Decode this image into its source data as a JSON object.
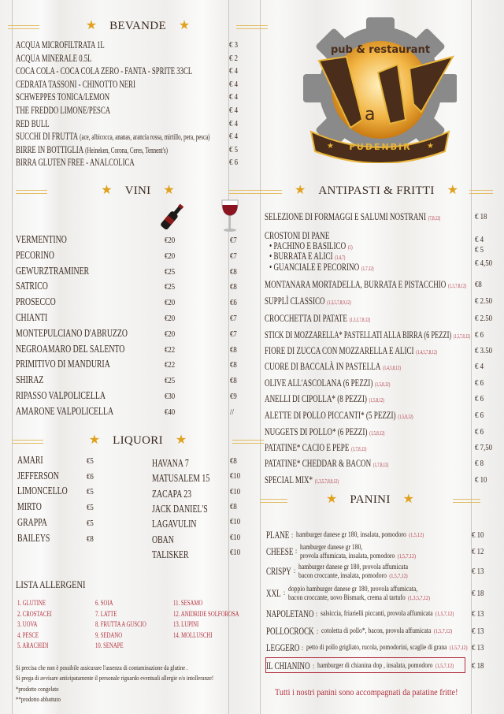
{
  "colors": {
    "text": "#3b2a20",
    "accent_red": "#b2323f",
    "star_gold": "#e0a21e"
  },
  "logo": {
    "tagline": "pub & restaurant",
    "name": "MaWi",
    "ribbon": "FUDENBIR"
  },
  "bevande": {
    "title": "BEVANDE",
    "items": [
      {
        "name": "ACQUA MICROFILTRATA 1L",
        "price": "€ 3"
      },
      {
        "name": "ACQUA MINERALE 0.5L",
        "price": "€ 2"
      },
      {
        "name": "COCA COLA - COCA COLA ZERO - FANTA - SPRITE 33CL",
        "price": "€ 4"
      },
      {
        "name": "CEDRATA TASSONI - CHINOTTO NERI",
        "price": "€ 4"
      },
      {
        "name": "SCHWEPPES TONICA/LEMON",
        "price": "€ 4"
      },
      {
        "name": "THE FREDDO LIMONE/PESCA",
        "price": "€ 4"
      },
      {
        "name": "RED BULL",
        "price": "€ 4"
      },
      {
        "name": "SUCCHI DI FRUTTA",
        "note": "(ace, albicocca, ananas, arancia rossa, mirtillo, pera, pesca)",
        "price": "€ 4"
      },
      {
        "name": "BIRRE IN BOTTIGLIA",
        "note": "(Heineken, Corona, Ceres, Tennent's)",
        "price": "€ 5"
      },
      {
        "name": "BIRRA GLUTEN FREE - ANALCOLICA",
        "price": "€ 6"
      }
    ]
  },
  "vini": {
    "title": "VINI",
    "icons": [
      "wine-bottle",
      "wine-glass"
    ],
    "items": [
      {
        "name": "VERMENTINO",
        "bottle": "€20",
        "glass": "€7"
      },
      {
        "name": "PECORINO",
        "bottle": "€20",
        "glass": "€7"
      },
      {
        "name": "GEWURZTRAMINER",
        "bottle": "€25",
        "glass": "€8"
      },
      {
        "name": "SATRICO",
        "bottle": "€25",
        "glass": "€8"
      },
      {
        "name": "PROSECCO",
        "bottle": "€20",
        "glass": "€6"
      },
      {
        "name": "CHIANTI",
        "bottle": "€20",
        "glass": "€7"
      },
      {
        "name": "MONTEPULCIANO D'ABRUZZO",
        "bottle": "€20",
        "glass": "€7"
      },
      {
        "name": "NEGROAMARO DEL SALENTO",
        "bottle": "€22",
        "glass": "€8"
      },
      {
        "name": "PRIMITIVO DI MANDURIA",
        "bottle": "€22",
        "glass": "€8"
      },
      {
        "name": "SHIRAZ",
        "bottle": "€25",
        "glass": "€8"
      },
      {
        "name": "RIPASSO VALPOLICELLA",
        "bottle": "€30",
        "glass": "€9"
      },
      {
        "name": "AMARONE VALPOLICELLA",
        "bottle": "€40",
        "glass": "//"
      }
    ]
  },
  "liquori": {
    "title": "LIQUORI",
    "left": [
      {
        "name": "AMARI",
        "price": "€5"
      },
      {
        "name": "JEFFERSON",
        "price": "€6"
      },
      {
        "name": "LIMONCELLO",
        "price": "€5"
      },
      {
        "name": "MIRTO",
        "price": "€5"
      },
      {
        "name": "GRAPPA",
        "price": "€5"
      },
      {
        "name": "BAILEYS",
        "price": "€8"
      }
    ],
    "right": [
      {
        "name": "HAVANA 7",
        "price": "€8"
      },
      {
        "name": "MATUSALEM 15",
        "price": "€10"
      },
      {
        "name": "ZACAPA 23",
        "price": "€10"
      },
      {
        "name": "JACK DANIEL'S",
        "price": "€8"
      },
      {
        "name": "LAGAVULIN",
        "price": "€10"
      },
      {
        "name": "OBAN",
        "price": "€10"
      },
      {
        "name": "TALISKER",
        "price": "€10"
      }
    ]
  },
  "allergeni": {
    "title": "LISTA ALLERGENI",
    "items": [
      "1. GLUTINE",
      "2. CROSTACEI",
      "3. UOVA",
      "4. PESCE",
      "5. ARACHIDI",
      "6. SOIA",
      "7. LATTE",
      "8. FRUTTA A GUSCIO",
      "9. SEDANO",
      "10. SENAPE",
      "11. SESAMO",
      "12. ANIDRIDE SOLFOROSA",
      "13. LUPINI",
      "14. MOLLUSCHI"
    ],
    "notes": [
      "Si precisa che non è possibile assicurare l'assenza di contaminazione da glutine .",
      "Si prega di avvisare anticipatamente il personale riguardo eventuali allergie e/o intolleranze!",
      "*prodotto congelato",
      "**prodotto abbattuto"
    ]
  },
  "antipasti": {
    "title": "ANTIPASTI & FRITTI",
    "items": [
      {
        "name": "SELEZIONE DI FORMAGGI E SALUMI NOSTRANI",
        "allergens": "(7,8,12)",
        "price": "€ 18"
      },
      {
        "name": "CROSTONI DI PANE",
        "allergens": "",
        "price": ""
      },
      {
        "name": "• PACHINO E BASILICO",
        "allergens": "(1)",
        "price": "€ 4"
      },
      {
        "name": "• BURRATA E ALICI",
        "allergens": "(1,4,7)",
        "price": "€ 5"
      },
      {
        "name": "• GUANCIALE E PECORINO",
        "allergens": "(1,7,12)",
        "price": "€ 4,50"
      },
      {
        "name": "MONTANARA MORTADELLA, BURRATA E PISTACCHIO",
        "allergens": "(1,5,7,8,12)",
        "price": "€8"
      },
      {
        "name": "SUPPLÌ CLASSICO",
        "allergens": "(1,3,5,7,8,9,12)",
        "price": "€ 2.50"
      },
      {
        "name": "CROCCHETTA DI PATATE",
        "allergens": "(1,3,5,7,8,12)",
        "price": "€ 2.50"
      },
      {
        "name": "STICK DI MOZZARELLA* PASTELLATI ALLA BIRRA (6 PEZZI)",
        "allergens": "(1,5,7,8,12)",
        "price": "€ 6"
      },
      {
        "name": "FIORE DI ZUCCA CON MOZZARELLA E ALICI",
        "allergens": "(1,4,5,7,8,12)",
        "price": "€ 3.50"
      },
      {
        "name": "CUORE DI BACCALÀ IN PASTELLA",
        "allergens": "(1,4,5,8,12)",
        "price": "€ 4"
      },
      {
        "name": "OLIVE ALL'ASCOLANA (6 PEZZI)",
        "allergens": "(1,5,8,12)",
        "price": "€ 6"
      },
      {
        "name": "ANELLI DI CIPOLLA* (8 PEZZI)",
        "allergens": "(1,5,8,12)",
        "price": "€ 6"
      },
      {
        "name": "ALETTE DI POLLO PICCANTI* (5 PEZZI)",
        "allergens": "(1,5,8,12)",
        "price": "€ 6"
      },
      {
        "name": "NUGGETS DI POLLO* (6 PEZZI)",
        "allergens": "(1,5,8,12)",
        "price": "€ 6"
      },
      {
        "name": "PATATINE* CACIO E PEPE",
        "allergens": "(1,7,8,12)",
        "price": "€ 7,50"
      },
      {
        "name": "PATATINE* CHEDDAR & BACON",
        "allergens": "(1,7,8,12)",
        "price": "€ 8"
      },
      {
        "name": "SPECIAL MIX*",
        "allergens": "(1,3,5,7,8,9,12)",
        "price": "€ 10"
      }
    ]
  },
  "panini": {
    "title": "PANINI",
    "items": [
      {
        "name": "PLANE",
        "desc": [
          "hamburger danese gr 180, insalata, pomodoro"
        ],
        "allergens": "(1,5,12)",
        "price": "€ 10"
      },
      {
        "name": "CHEESE",
        "desc": [
          "hamburger danese gr 180,",
          "provola affumicata, insalata, pomodoro"
        ],
        "allergens": "(1,5,7,12)",
        "price": "€ 12"
      },
      {
        "name": "CRISPY",
        "desc": [
          "hamburger danese gr 180, provola affumicata",
          "bacon croccante, insalata, pomodoro"
        ],
        "allergens": "(1,5,7,12)",
        "price": "€ 13"
      },
      {
        "name": "XXL",
        "desc": [
          "doppio hamburger danese gr 180, provola affumicata,",
          "bacon croccante, uovo Bismark, crema al tartufo"
        ],
        "allergens": "(1,3,5,7,12)",
        "price": "€ 18"
      },
      {
        "name": "NAPOLETANO",
        "desc": [
          "salsiccia, friarielli piccanti, provola affumicata"
        ],
        "allergens": "(1,5,7,12)",
        "price": "€ 13"
      },
      {
        "name": "POLLOCROCK",
        "desc": [
          "cotoletta di pollo*, bacon, provola affumicata"
        ],
        "allergens": "(1,5,7,12)",
        "price": "€ 13"
      },
      {
        "name": "LEGGERO",
        "desc": [
          "petto di pollo grigliato, rucola, pomodorini, scaglie di grana"
        ],
        "allergens": "(1,5,7,12)",
        "price": "€ 13"
      },
      {
        "name": "IL CHIANINO",
        "desc": [
          "hamburger di chianina dop , insalata, pomodoro"
        ],
        "allergens": "(1,5,7,12)",
        "price": "€ 18"
      }
    ],
    "footer": "Tutti i nostri panini sono accompagnati da patatine fritte!"
  }
}
